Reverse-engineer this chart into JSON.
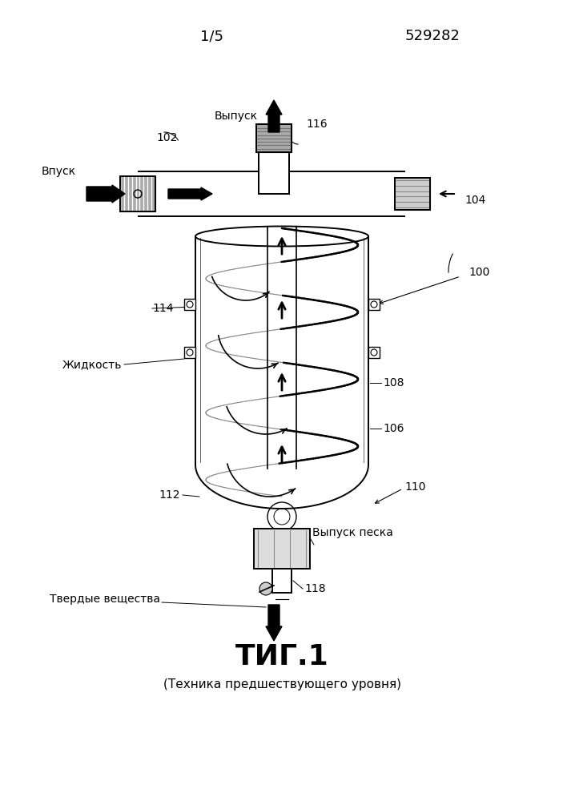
{
  "page_number": "1/5",
  "patent_number": "529282",
  "fig_label": "ΤИГ.1",
  "fig_sublabel": "(Техника предшествующего уровня)",
  "labels": {
    "vypusk": "Выпуск",
    "vpusk": "Впуск",
    "zhidkost": "Жидкость",
    "tverdye": "Твердые вещества",
    "vypusk_peska": "Выпуск песка"
  },
  "numbers": {
    "n100": "100",
    "n102": "102",
    "n104": "104",
    "n106": "106",
    "n108": "108",
    "n110": "110",
    "n112": "112",
    "n114": "114",
    "n116": "116",
    "n118": "118"
  },
  "bg_color": "#ffffff",
  "line_color": "#000000",
  "font_size_header": 13,
  "font_size_label": 10,
  "font_size_fig": 26
}
